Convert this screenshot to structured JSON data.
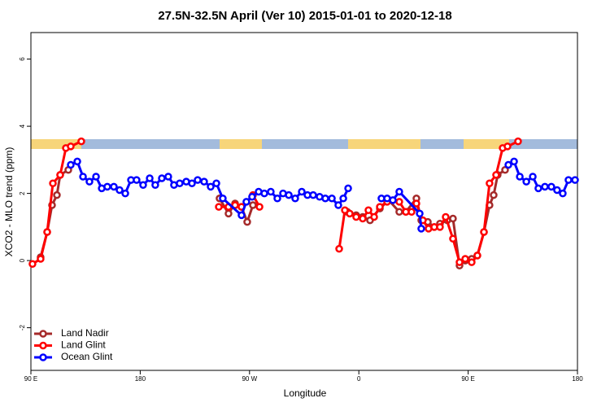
{
  "chart_data": {
    "type": "line",
    "title": "27.5N-32.5N April (Ver 10)   2015-01-01 to 2020-12-18",
    "x_label": "Longitude",
    "y_label": "XCO2 - MLO trend (ppm)",
    "xlim": [
      90,
      540
    ],
    "xticks": [
      {
        "value": 90,
        "label": "90 E"
      },
      180,
      {
        "value": 270,
        "label": "90 W"
      },
      {
        "value": 360,
        "label": "0"
      },
      {
        "value": 450,
        "label": "90 E"
      },
      {
        "value": 540,
        "label": "180"
      }
    ],
    "ylim": [
      -3.27,
      6.79
    ],
    "yticks": [
      -2,
      0,
      2,
      4,
      6
    ],
    "legend": "bottomleft",
    "series": [
      {
        "name": "Land Nadir",
        "color": "#a52a2a",
        "x": [
          98,
          103.4,
          107.4,
          111.4,
          114.1,
          120.8,
          null,
          245.3,
          252.7,
          258.1,
          263.4,
          268.1,
          272.8,
          null,
          350.5,
          357.8,
          363.2,
          369.2,
          377.3,
          384.6,
          393.3,
          398.7,
          407.4,
          411.4,
          416.8,
          422.1,
          426.8,
          432.8,
          437.5,
          442.9,
          447.6,
          452.9,
          457.6,
          463,
          467.6,
          471,
          474.3,
          480.4
        ],
        "values": [
          0.1,
          0.85,
          1.65,
          1.95,
          2.55,
          2.7,
          null,
          1.85,
          1.4,
          1.7,
          1.6,
          1.15,
          1.65,
          null,
          1.45,
          1.35,
          1.3,
          1.2,
          1.55,
          1.8,
          1.45,
          1.45,
          1.85,
          1.2,
          1.15,
          1.0,
          1.1,
          1.2,
          1.25,
          -0.15,
          0,
          0.05,
          0.15,
          0.85,
          1.65,
          1.95,
          2.55,
          2.7
        ]
      },
      {
        "name": "Land Glint",
        "color": "#ff0000",
        "x": [
          91.3,
          98,
          103.4,
          108.1,
          114.1,
          118.8,
          122.8,
          131.5,
          null,
          244.7,
          252.7,
          258.1,
          263.4,
          272.8,
          278.2,
          null,
          343.8,
          348.5,
          352.5,
          357.8,
          363.2,
          367.9,
          372.6,
          377.3,
          383.3,
          393.3,
          398.7,
          403.4,
          407.4,
          412.7,
          417.4,
          422.1,
          426.8,
          431.5,
          437.5,
          442.9,
          447.6,
          452.9,
          457.6,
          463,
          467.6,
          473,
          478.4,
          482.4,
          491.1
        ],
        "values": [
          -0.1,
          0.05,
          0.85,
          2.3,
          2.55,
          3.35,
          3.4,
          3.55,
          null,
          1.6,
          1.6,
          1.65,
          1.6,
          1.95,
          1.6,
          null,
          0.35,
          1.5,
          1.4,
          1.3,
          1.25,
          1.5,
          1.3,
          1.6,
          1.75,
          1.75,
          1.45,
          1.45,
          1.7,
          1.2,
          0.95,
          1.0,
          1.0,
          1.3,
          0.65,
          -0.05,
          0.05,
          -0.05,
          0.15,
          0.85,
          2.3,
          2.55,
          3.35,
          3.4,
          3.55
        ]
      },
      {
        "name": "Ocean Glint",
        "color": "#0000ff",
        "x": [
          122.8,
          128.2,
          132.9,
          138.2,
          143.6,
          148.3,
          152.9,
          158.3,
          163,
          167.7,
          172.4,
          177,
          182.4,
          187.8,
          192.4,
          197.8,
          203.1,
          207.8,
          212.5,
          217.9,
          222.6,
          227.3,
          232.6,
          238,
          242.7,
          248,
          263.4,
          267.4,
          272.1,
          277.5,
          282.2,
          287.5,
          292.9,
          297.6,
          302.3,
          307.6,
          313,
          317.7,
          322.4,
          327.7,
          332.4,
          337.8,
          343.1,
          347.2,
          351.2,
          null,
          378.6,
          383.3,
          388,
          393.3,
          410.1,
          411.4,
          null,
          483.1,
          487.8,
          492.5,
          497.9,
          503.2,
          507.8,
          513.2,
          518.5,
          523.2,
          527.9,
          532.6,
          538
        ],
        "values": [
          2.85,
          2.95,
          2.5,
          2.35,
          2.5,
          2.15,
          2.2,
          2.2,
          2.1,
          2.0,
          2.4,
          2.4,
          2.25,
          2.45,
          2.25,
          2.45,
          2.5,
          2.25,
          2.3,
          2.35,
          2.3,
          2.4,
          2.35,
          2.2,
          2.3,
          1.85,
          1.35,
          1.75,
          1.9,
          2.05,
          2.0,
          2.05,
          1.85,
          2.0,
          1.95,
          1.85,
          2.05,
          1.95,
          1.95,
          1.9,
          1.85,
          1.85,
          1.65,
          1.85,
          2.15,
          null,
          1.85,
          1.85,
          1.8,
          2.05,
          1.4,
          0.95,
          null,
          2.85,
          2.95,
          2.5,
          2.35,
          2.5,
          2.15,
          2.2,
          2.2,
          2.1,
          2.0,
          2.4,
          2.4
        ]
      }
    ]
  }
}
